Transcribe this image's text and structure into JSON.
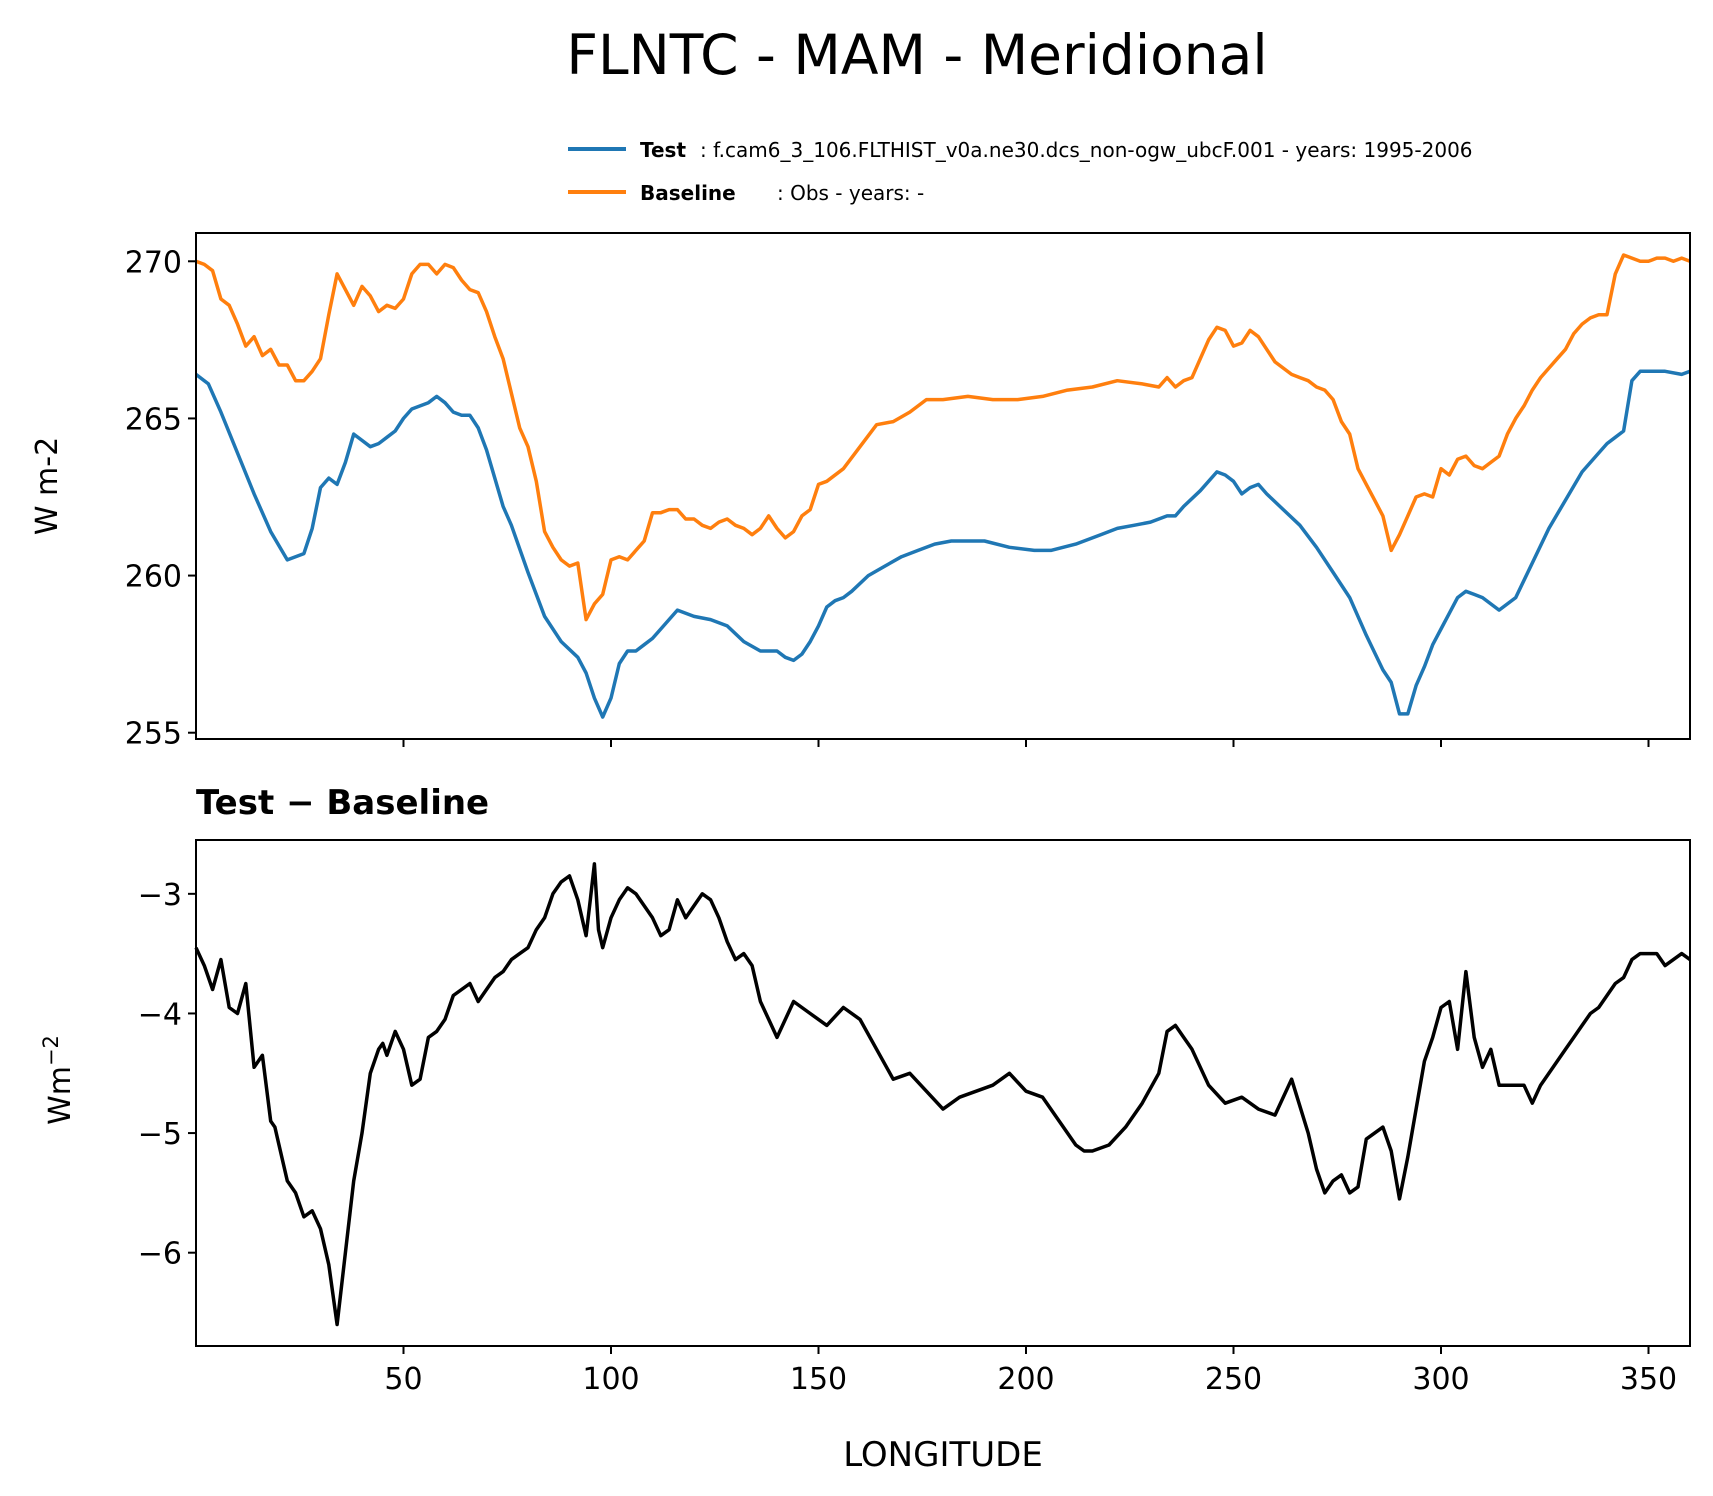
{
  "figure": {
    "title": "FLNTC - MAM - Meridional"
  },
  "legend": {
    "test_label": "Test",
    "test_text": ": f.cam6_3_106.FLTHIST_v0a.ne30.dcs_non-ogw_ubcF.001 - years: 1995-2006",
    "baseline_label": "Baseline",
    "baseline_text": ": Obs - years: -"
  },
  "colors": {
    "test": "#1f77b4",
    "baseline": "#ff7f0e",
    "diff": "#000000"
  },
  "chart_data": [
    {
      "type": "line",
      "title": "",
      "xlabel": "",
      "ylabel": "W m-2",
      "xlim": [
        0,
        360
      ],
      "ylim": [
        254.8,
        270.9
      ],
      "yticks": [
        255,
        260,
        265,
        270
      ],
      "ytick_labels": [
        "255",
        "260",
        "265",
        "270"
      ],
      "xticks": [
        50,
        100,
        150,
        200,
        250,
        300,
        350
      ],
      "legend_position": "top-right (outside, above plot)",
      "grid": false,
      "series": [
        {
          "name": "Test",
          "x": [
            0,
            3,
            6,
            10,
            14,
            18,
            22,
            26,
            28,
            30,
            32,
            34,
            36,
            38,
            40,
            42,
            44,
            46,
            48,
            50,
            52,
            54,
            56,
            58,
            60,
            62,
            64,
            66,
            68,
            70,
            72,
            74,
            76,
            80,
            84,
            88,
            92,
            94,
            96,
            98,
            100,
            102,
            104,
            106,
            108,
            110,
            112,
            116,
            120,
            124,
            128,
            132,
            136,
            140,
            142,
            144,
            146,
            148,
            150,
            152,
            154,
            156,
            158,
            162,
            166,
            170,
            174,
            178,
            182,
            186,
            190,
            196,
            202,
            206,
            212,
            218,
            222,
            226,
            230,
            234,
            236,
            238,
            242,
            246,
            248,
            250,
            252,
            254,
            256,
            258,
            262,
            266,
            270,
            274,
            278,
            282,
            286,
            288,
            290,
            292,
            294,
            296,
            298,
            300,
            302,
            304,
            306,
            308,
            310,
            314,
            318,
            322,
            326,
            330,
            334,
            338,
            340,
            342,
            344,
            346,
            348,
            350,
            354,
            358,
            360
          ],
          "values": [
            266.4,
            266.1,
            265.2,
            263.9,
            262.6,
            261.4,
            260.5,
            260.7,
            261.5,
            262.8,
            263.1,
            262.9,
            263.6,
            264.5,
            264.3,
            264.1,
            264.2,
            264.4,
            264.6,
            265.0,
            265.3,
            265.4,
            265.5,
            265.7,
            265.5,
            265.2,
            265.1,
            265.1,
            264.7,
            264.0,
            263.1,
            262.2,
            261.6,
            260.1,
            258.7,
            257.9,
            257.4,
            256.9,
            256.1,
            255.5,
            256.1,
            257.2,
            257.6,
            257.6,
            257.8,
            258.0,
            258.3,
            258.9,
            258.7,
            258.6,
            258.4,
            257.9,
            257.6,
            257.6,
            257.4,
            257.3,
            257.5,
            257.9,
            258.4,
            259.0,
            259.2,
            259.3,
            259.5,
            260.0,
            260.3,
            260.6,
            260.8,
            261.0,
            261.1,
            261.1,
            261.1,
            260.9,
            260.8,
            260.8,
            261.0,
            261.3,
            261.5,
            261.6,
            261.7,
            261.9,
            261.9,
            262.2,
            262.7,
            263.3,
            263.2,
            263.0,
            262.6,
            262.8,
            262.9,
            262.6,
            262.1,
            261.6,
            260.9,
            260.1,
            259.3,
            258.1,
            257.0,
            256.6,
            255.6,
            255.6,
            256.5,
            257.1,
            257.8,
            258.3,
            258.8,
            259.3,
            259.5,
            259.4,
            259.3,
            258.9,
            259.3,
            260.4,
            261.5,
            262.4,
            263.3,
            263.9,
            264.2,
            264.4,
            264.6,
            266.2,
            266.5,
            266.5,
            266.5,
            266.4,
            266.5
          ]
        },
        {
          "name": "Baseline",
          "x": [
            0,
            2,
            4,
            6,
            8,
            10,
            12,
            14,
            16,
            18,
            20,
            22,
            24,
            26,
            28,
            30,
            32,
            34,
            36,
            38,
            40,
            42,
            44,
            46,
            48,
            50,
            52,
            54,
            56,
            58,
            60,
            62,
            64,
            66,
            68,
            70,
            72,
            74,
            76,
            78,
            80,
            82,
            84,
            86,
            88,
            90,
            92,
            94,
            96,
            98,
            100,
            102,
            104,
            106,
            108,
            110,
            112,
            114,
            116,
            118,
            120,
            122,
            124,
            126,
            128,
            130,
            132,
            134,
            136,
            138,
            140,
            142,
            144,
            146,
            148,
            150,
            152,
            156,
            160,
            164,
            168,
            172,
            176,
            180,
            186,
            192,
            198,
            204,
            210,
            216,
            222,
            228,
            232,
            234,
            236,
            238,
            240,
            242,
            244,
            246,
            248,
            250,
            252,
            254,
            256,
            258,
            260,
            262,
            264,
            266,
            268,
            270,
            272,
            274,
            276,
            278,
            280,
            282,
            284,
            286,
            288,
            290,
            292,
            294,
            296,
            298,
            300,
            302,
            304,
            306,
            308,
            310,
            312,
            314,
            316,
            318,
            320,
            322,
            324,
            326,
            328,
            330,
            332,
            334,
            336,
            338,
            340,
            342,
            344,
            346,
            348,
            350,
            352,
            354,
            356,
            358,
            360
          ],
          "values": [
            270.0,
            269.9,
            269.7,
            268.8,
            268.6,
            268.0,
            267.3,
            267.6,
            267.0,
            267.2,
            266.7,
            266.7,
            266.2,
            266.2,
            266.5,
            266.9,
            268.3,
            269.6,
            269.1,
            268.6,
            269.2,
            268.9,
            268.4,
            268.6,
            268.5,
            268.8,
            269.6,
            269.9,
            269.9,
            269.6,
            269.9,
            269.8,
            269.4,
            269.1,
            269.0,
            268.4,
            267.6,
            266.9,
            265.8,
            264.7,
            264.1,
            263.0,
            261.4,
            260.9,
            260.5,
            260.3,
            260.4,
            258.6,
            259.1,
            259.4,
            260.5,
            260.6,
            260.5,
            260.8,
            261.1,
            262.0,
            262.0,
            262.1,
            262.1,
            261.8,
            261.8,
            261.6,
            261.5,
            261.7,
            261.8,
            261.6,
            261.5,
            261.3,
            261.5,
            261.9,
            261.5,
            261.2,
            261.4,
            261.9,
            262.1,
            262.9,
            263.0,
            263.4,
            264.1,
            264.8,
            264.9,
            265.2,
            265.6,
            265.6,
            265.7,
            265.6,
            265.6,
            265.7,
            265.9,
            266.0,
            266.2,
            266.1,
            266.0,
            266.3,
            266.0,
            266.2,
            266.3,
            266.9,
            267.5,
            267.9,
            267.8,
            267.3,
            267.4,
            267.8,
            267.6,
            267.2,
            266.8,
            266.6,
            266.4,
            266.3,
            266.2,
            266.0,
            265.9,
            265.6,
            264.9,
            264.5,
            263.4,
            262.9,
            262.4,
            261.9,
            260.8,
            261.3,
            261.9,
            262.5,
            262.6,
            262.5,
            263.4,
            263.2,
            263.7,
            263.8,
            263.5,
            263.4,
            263.6,
            263.8,
            264.5,
            265.0,
            265.4,
            265.9,
            266.3,
            266.6,
            266.9,
            267.2,
            267.7,
            268.0,
            268.2,
            268.3,
            268.3,
            269.6,
            270.2,
            270.1,
            270.0,
            270.0,
            270.1,
            270.1,
            270.0,
            270.1,
            270.0
          ]
        }
      ]
    },
    {
      "type": "line",
      "title": "Test − Baseline",
      "xlabel": "LONGITUDE",
      "ylabel": "Wm",
      "ylabel_superscript": "−2",
      "xlim": [
        0,
        360
      ],
      "ylim": [
        -6.78,
        -2.55
      ],
      "yticks": [
        -3,
        -4,
        -5,
        -6
      ],
      "ytick_labels": [
        "−3",
        "−4",
        "−5",
        "−6"
      ],
      "xticks": [
        50,
        100,
        150,
        200,
        250,
        300,
        350
      ],
      "xtick_labels": [
        "50",
        "100",
        "150",
        "200",
        "250",
        "300",
        "350"
      ],
      "grid": false,
      "series": [
        {
          "x": [
            0,
            2,
            4,
            6,
            8,
            10,
            12,
            14,
            16,
            18,
            19,
            20,
            22,
            24,
            26,
            28,
            30,
            32,
            34,
            36,
            38,
            40,
            42,
            44,
            45,
            46,
            48,
            50,
            52,
            54,
            56,
            58,
            60,
            62,
            64,
            66,
            68,
            70,
            72,
            74,
            76,
            78,
            80,
            82,
            84,
            86,
            88,
            90,
            92,
            94,
            95,
            96,
            97,
            98,
            100,
            102,
            104,
            106,
            108,
            110,
            112,
            114,
            116,
            118,
            120,
            122,
            124,
            126,
            128,
            130,
            132,
            134,
            136,
            138,
            140,
            144,
            148,
            152,
            156,
            160,
            164,
            168,
            172,
            176,
            180,
            184,
            188,
            192,
            196,
            200,
            204,
            208,
            212,
            214,
            216,
            220,
            224,
            228,
            232,
            234,
            236,
            238,
            240,
            244,
            248,
            252,
            256,
            260,
            264,
            268,
            270,
            272,
            274,
            276,
            278,
            280,
            282,
            284,
            286,
            288,
            290,
            292,
            294,
            296,
            298,
            300,
            302,
            304,
            306,
            308,
            310,
            312,
            314,
            316,
            318,
            320,
            322,
            324,
            326,
            328,
            330,
            332,
            334,
            336,
            338,
            340,
            342,
            344,
            346,
            348,
            350,
            352,
            354,
            356,
            358,
            360
          ],
          "values": [
            -3.45,
            -3.6,
            -3.8,
            -3.55,
            -3.95,
            -4.0,
            -3.75,
            -4.45,
            -4.35,
            -4.9,
            -4.95,
            -5.1,
            -5.4,
            -5.5,
            -5.7,
            -5.65,
            -5.8,
            -6.1,
            -6.6,
            -6.0,
            -5.4,
            -5.0,
            -4.5,
            -4.3,
            -4.25,
            -4.35,
            -4.15,
            -4.3,
            -4.6,
            -4.55,
            -4.2,
            -4.15,
            -4.05,
            -3.85,
            -3.8,
            -3.75,
            -3.9,
            -3.8,
            -3.7,
            -3.65,
            -3.55,
            -3.5,
            -3.45,
            -3.3,
            -3.2,
            -3.0,
            -2.9,
            -2.85,
            -3.05,
            -3.35,
            -3.05,
            -2.75,
            -3.3,
            -3.45,
            -3.2,
            -3.05,
            -2.95,
            -3.0,
            -3.1,
            -3.2,
            -3.35,
            -3.3,
            -3.05,
            -3.2,
            -3.1,
            -3.0,
            -3.05,
            -3.2,
            -3.4,
            -3.55,
            -3.5,
            -3.6,
            -3.9,
            -4.05,
            -4.2,
            -3.9,
            -4.0,
            -4.1,
            -3.95,
            -4.05,
            -4.3,
            -4.55,
            -4.5,
            -4.65,
            -4.8,
            -4.7,
            -4.65,
            -4.6,
            -4.5,
            -4.65,
            -4.7,
            -4.9,
            -5.1,
            -5.15,
            -5.15,
            -5.1,
            -4.95,
            -4.75,
            -4.5,
            -4.15,
            -4.1,
            -4.2,
            -4.3,
            -4.6,
            -4.75,
            -4.7,
            -4.8,
            -4.85,
            -4.55,
            -5.0,
            -5.3,
            -5.5,
            -5.4,
            -5.35,
            -5.5,
            -5.45,
            -5.05,
            -5.0,
            -4.95,
            -5.15,
            -5.55,
            -5.2,
            -4.8,
            -4.4,
            -4.2,
            -3.95,
            -3.9,
            -4.3,
            -3.65,
            -4.2,
            -4.45,
            -4.3,
            -4.6,
            -4.6,
            -4.6,
            -4.6,
            -4.75,
            -4.6,
            -4.5,
            -4.4,
            -4.3,
            -4.2,
            -4.1,
            -4.0,
            -3.95,
            -3.85,
            -3.75,
            -3.7,
            -3.55,
            -3.5,
            -3.5,
            -3.5,
            -3.6,
            -3.55,
            -3.5,
            -3.55
          ]
        }
      ]
    }
  ]
}
